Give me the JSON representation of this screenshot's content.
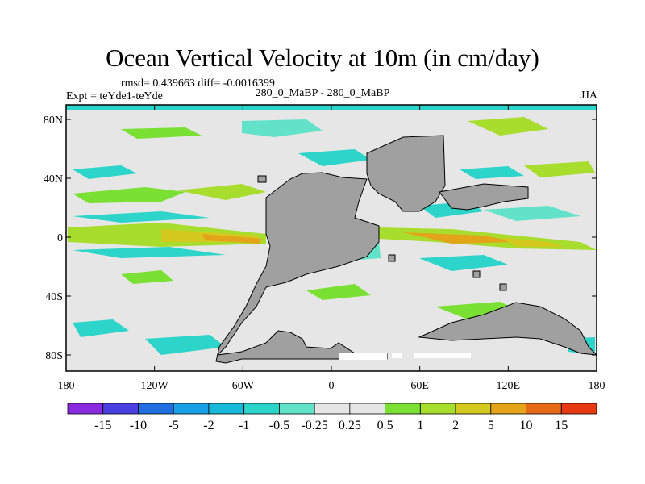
{
  "title": "Ocean Vertical Velocity at 10m (in cm/day)",
  "stats": "rmsd= 0.439663 diff= -0.0016399",
  "experiment": "Expt = teYde1-teYde",
  "comparison": "280_0_MaBP - 280_0_MaBP",
  "season": "JJA",
  "axes": {
    "lon_labels": [
      "180",
      "120W",
      "60W",
      "0",
      "60E",
      "120E",
      "180"
    ],
    "lat_labels": [
      "80N",
      "40N",
      "0",
      "40S",
      "80S"
    ]
  },
  "colorbar": {
    "labels": [
      "-15",
      "-10",
      "-5",
      "-2",
      "-1",
      "-0.5",
      "-0.25",
      "0.25",
      "0.5",
      "1",
      "2",
      "5",
      "10",
      "15"
    ],
    "colors": [
      "#8a2be2",
      "#4a3fe0",
      "#1f6fe0",
      "#1a9fe6",
      "#18b9d8",
      "#2cd4c9",
      "#62e3c9",
      "#e6e6e6",
      "#7be034",
      "#a9dd2d",
      "#d4c91e",
      "#e3a419",
      "#e76b16",
      "#e83a12"
    ]
  },
  "map": {
    "land_color": "#a0a0a0",
    "ocean_bg": "#e6e6e6"
  }
}
